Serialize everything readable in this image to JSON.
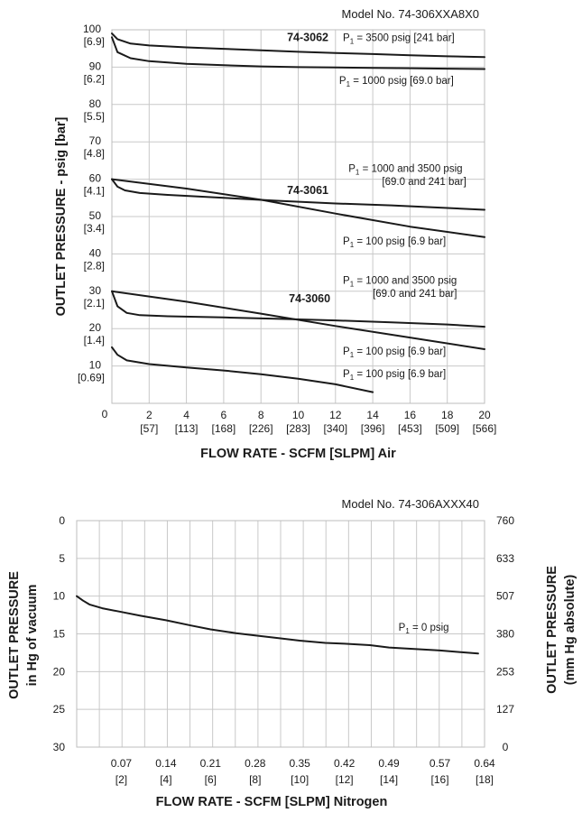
{
  "chart_data": [
    {
      "type": "line",
      "model": "Model No. 74-306XXA8X0",
      "xlabel": "FLOW RATE - SCFM [SLPM] Air",
      "ylabel": "OUTLET PRESSURE - psig [bar]",
      "xlim": [
        0,
        20
      ],
      "ylim": [
        0,
        100
      ],
      "grid": true,
      "x_origin_label": "0",
      "x_ticks": [
        {
          "value": 2,
          "label": "2",
          "sub": "[57]"
        },
        {
          "value": 4,
          "label": "4",
          "sub": "[113]"
        },
        {
          "value": 6,
          "label": "6",
          "sub": "[168]"
        },
        {
          "value": 8,
          "label": "8",
          "sub": "[226]"
        },
        {
          "value": 10,
          "label": "10",
          "sub": "[283]"
        },
        {
          "value": 12,
          "label": "12",
          "sub": "[340]"
        },
        {
          "value": 14,
          "label": "14",
          "sub": "[396]"
        },
        {
          "value": 16,
          "label": "16",
          "sub": "[453]"
        },
        {
          "value": 18,
          "label": "18",
          "sub": "[509]"
        },
        {
          "value": 20,
          "label": "20",
          "sub": "[566]"
        }
      ],
      "y_ticks": [
        {
          "value": 100,
          "label": "100",
          "sub": "[6.9]"
        },
        {
          "value": 90,
          "label": "90",
          "sub": "[6.2]"
        },
        {
          "value": 80,
          "label": "80",
          "sub": "[5.5]"
        },
        {
          "value": 70,
          "label": "70",
          "sub": "[4.8]"
        },
        {
          "value": 60,
          "label": "60",
          "sub": "[4.1]"
        },
        {
          "value": 50,
          "label": "50",
          "sub": "[3.4]"
        },
        {
          "value": 40,
          "label": "40",
          "sub": "[2.8]"
        },
        {
          "value": 30,
          "label": "30",
          "sub": "[2.1]"
        },
        {
          "value": 20,
          "label": "20",
          "sub": "[1.4]"
        },
        {
          "value": 10,
          "label": "10",
          "sub": "[0.69]"
        }
      ],
      "annotations": [
        {
          "text": "74-3062",
          "bold": true,
          "x": 9.4,
          "y": 97
        },
        {
          "text": "P₁ = 3500 psig [241 bar]",
          "x": 12.4,
          "y": 97
        },
        {
          "text": "P₁ = 1000 psig [69.0 bar]",
          "x": 12.2,
          "y": 85.5
        },
        {
          "text": "P₁ = 1000 and 3500 psig",
          "x": 12.7,
          "y": 62
        },
        {
          "text": "[69.0 and 241 bar]",
          "x": 14.5,
          "y": 58.5
        },
        {
          "text": "74-3061",
          "bold": true,
          "x": 9.4,
          "y": 56
        },
        {
          "text": "P₁ = 100 psig [6.9 bar]",
          "x": 12.4,
          "y": 42.5
        },
        {
          "text": "P₁ = 1000 and 3500 psig",
          "x": 12.4,
          "y": 32
        },
        {
          "text": "[69.0 and 241 bar]",
          "x": 14.0,
          "y": 28.5
        },
        {
          "text": "74-3060",
          "bold": true,
          "x": 9.5,
          "y": 27
        },
        {
          "text": "P₁ = 100 psig [6.9 bar]",
          "x": 12.4,
          "y": 13
        },
        {
          "text": "P₁ = 100 psig [6.9 bar]",
          "x": 12.4,
          "y": 7
        }
      ],
      "series": [
        {
          "x": [
            0,
            0.3,
            1,
            2,
            4,
            6,
            8,
            10,
            12,
            14,
            16,
            18,
            20
          ],
          "values": [
            99,
            97.5,
            96.3,
            95.8,
            95.3,
            94.9,
            94.5,
            94.1,
            93.8,
            93.5,
            93.2,
            92.9,
            92.7
          ]
        },
        {
          "x": [
            0,
            0.3,
            1,
            2,
            4,
            6,
            8,
            10,
            12,
            14,
            16,
            18,
            20
          ],
          "values": [
            98,
            94,
            92.4,
            91.6,
            90.9,
            90.5,
            90.2,
            90.0,
            89.9,
            89.8,
            89.7,
            89.6,
            89.5
          ]
        },
        {
          "x": [
            0,
            4,
            8,
            12,
            16,
            20
          ],
          "values": [
            60,
            57.5,
            54.5,
            50.8,
            47.3,
            44.5
          ]
        },
        {
          "x": [
            0,
            0.3,
            0.7,
            1.5,
            3,
            6,
            9,
            12,
            15,
            18,
            20
          ],
          "values": [
            60,
            58,
            57,
            56.3,
            55.8,
            55,
            54.2,
            53.5,
            53,
            52.3,
            51.8
          ]
        },
        {
          "x": [
            0,
            4,
            8,
            12,
            16,
            20
          ],
          "values": [
            30,
            27.2,
            24,
            20.7,
            17.6,
            14.5
          ]
        },
        {
          "x": [
            0,
            0.3,
            0.8,
            1.5,
            3,
            6,
            9,
            12,
            15,
            18,
            20
          ],
          "values": [
            30,
            26,
            24.2,
            23.6,
            23.3,
            23,
            22.6,
            22.2,
            21.7,
            21.1,
            20.5
          ]
        },
        {
          "x": [
            0,
            0.3,
            0.8,
            2,
            4,
            6,
            8,
            10,
            12,
            14
          ],
          "values": [
            15,
            13,
            11.5,
            10.5,
            9.6,
            8.8,
            7.8,
            6.6,
            5.1,
            3
          ]
        }
      ]
    },
    {
      "type": "line",
      "model": "Model No. 74-306AXXX40",
      "xlabel": "FLOW RATE - SCFM [SLPM] Nitrogen",
      "ylabel_left": [
        "OUTLET PRESSURE",
        "in Hg of vacuum"
      ],
      "ylabel_right": [
        "OUTLET PRESSURE",
        "(mm Hg absolute)"
      ],
      "xlim": [
        0,
        0.64
      ],
      "ylim": [
        0,
        30
      ],
      "y_inverted": true,
      "grid": true,
      "x_ticks": [
        {
          "value": 0.07,
          "label": "0.07",
          "sub": "[2]"
        },
        {
          "value": 0.14,
          "label": "0.14",
          "sub": "[4]"
        },
        {
          "value": 0.21,
          "label": "0.21",
          "sub": "[6]"
        },
        {
          "value": 0.28,
          "label": "0.28",
          "sub": "[8]"
        },
        {
          "value": 0.35,
          "label": "0.35",
          "sub": "[10]"
        },
        {
          "value": 0.42,
          "label": "0.42",
          "sub": "[12]"
        },
        {
          "value": 0.49,
          "label": "0.49",
          "sub": "[14]"
        },
        {
          "value": 0.57,
          "label": "0.57",
          "sub": "[16]"
        },
        {
          "value": 0.64,
          "label": "0.64",
          "sub": "[18]"
        }
      ],
      "y_ticks_left": [
        {
          "value": 0,
          "label": "0"
        },
        {
          "value": 5,
          "label": "5"
        },
        {
          "value": 10,
          "label": "10"
        },
        {
          "value": 15,
          "label": "15"
        },
        {
          "value": 20,
          "label": "20"
        },
        {
          "value": 25,
          "label": "25"
        },
        {
          "value": 30,
          "label": "30"
        }
      ],
      "y_ticks_right": [
        {
          "value": 0,
          "label": "760"
        },
        {
          "value": 5,
          "label": "633"
        },
        {
          "value": 10,
          "label": "507"
        },
        {
          "value": 15,
          "label": "380"
        },
        {
          "value": 20,
          "label": "253"
        },
        {
          "value": 25,
          "label": "127"
        },
        {
          "value": 30,
          "label": "0"
        }
      ],
      "annotations": [
        {
          "text": "P₁ = 0 psig",
          "x": 0.505,
          "y": 14.6
        }
      ],
      "series": [
        {
          "x": [
            0,
            0.01,
            0.02,
            0.04,
            0.07,
            0.1,
            0.14,
            0.18,
            0.21,
            0.25,
            0.28,
            0.32,
            0.35,
            0.39,
            0.42,
            0.46,
            0.49,
            0.53,
            0.57,
            0.6,
            0.63
          ],
          "values": [
            10,
            10.6,
            11.1,
            11.6,
            12.1,
            12.6,
            13.2,
            13.9,
            14.4,
            14.9,
            15.2,
            15.6,
            15.9,
            16.2,
            16.3,
            16.5,
            16.8,
            17.0,
            17.2,
            17.4,
            17.6
          ]
        }
      ]
    }
  ]
}
